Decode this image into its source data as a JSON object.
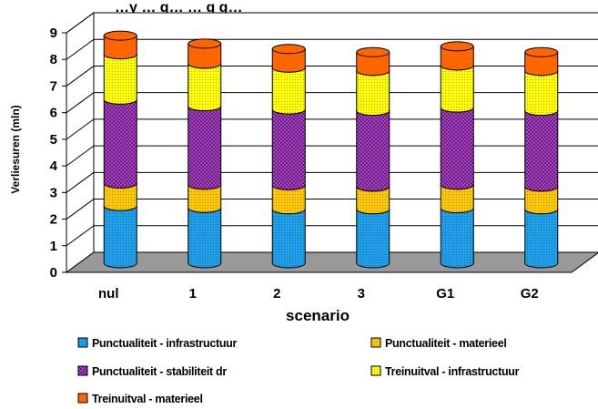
{
  "chart_data": {
    "type": "bar",
    "stacked": true,
    "three_d": true,
    "title": "…y … g…                                          … g g…",
    "xlabel": "scenario",
    "ylabel": "Verliesuren (mln)",
    "ylim": [
      0,
      9
    ],
    "yticks": [
      0,
      1,
      2,
      3,
      4,
      5,
      6,
      7,
      8,
      9
    ],
    "grid": true,
    "legend_position": "bottom",
    "categories": [
      "nul",
      "1",
      "2",
      "3",
      "G1",
      "G2"
    ],
    "series": [
      {
        "name": "Punctualiteit - infrastructuur",
        "color": "#1E9FEA",
        "pattern": "dots",
        "values": [
          2.15,
          2.08,
          2.03,
          2.03,
          2.07,
          2.03
        ]
      },
      {
        "name": "Punctualiteit - materieel",
        "color": "#FFC800",
        "pattern": "dots",
        "values": [
          0.85,
          0.87,
          0.9,
          0.85,
          0.88,
          0.85
        ]
      },
      {
        "name": "Punctualiteit - stabiliteit dr",
        "color": "#B040D0",
        "pattern": "checker",
        "values": [
          3.15,
          2.95,
          2.85,
          2.85,
          2.9,
          2.85
        ]
      },
      {
        "name": "Treinuitval - infrastructuur",
        "color": "#FFFF00",
        "pattern": "dots",
        "values": [
          1.7,
          1.6,
          1.57,
          1.5,
          1.58,
          1.5
        ]
      },
      {
        "name": "Treinuitval - materieel",
        "color": "#FF6600",
        "pattern": "solid",
        "values": [
          0.7,
          0.75,
          0.7,
          0.7,
          0.72,
          0.7
        ]
      }
    ]
  }
}
